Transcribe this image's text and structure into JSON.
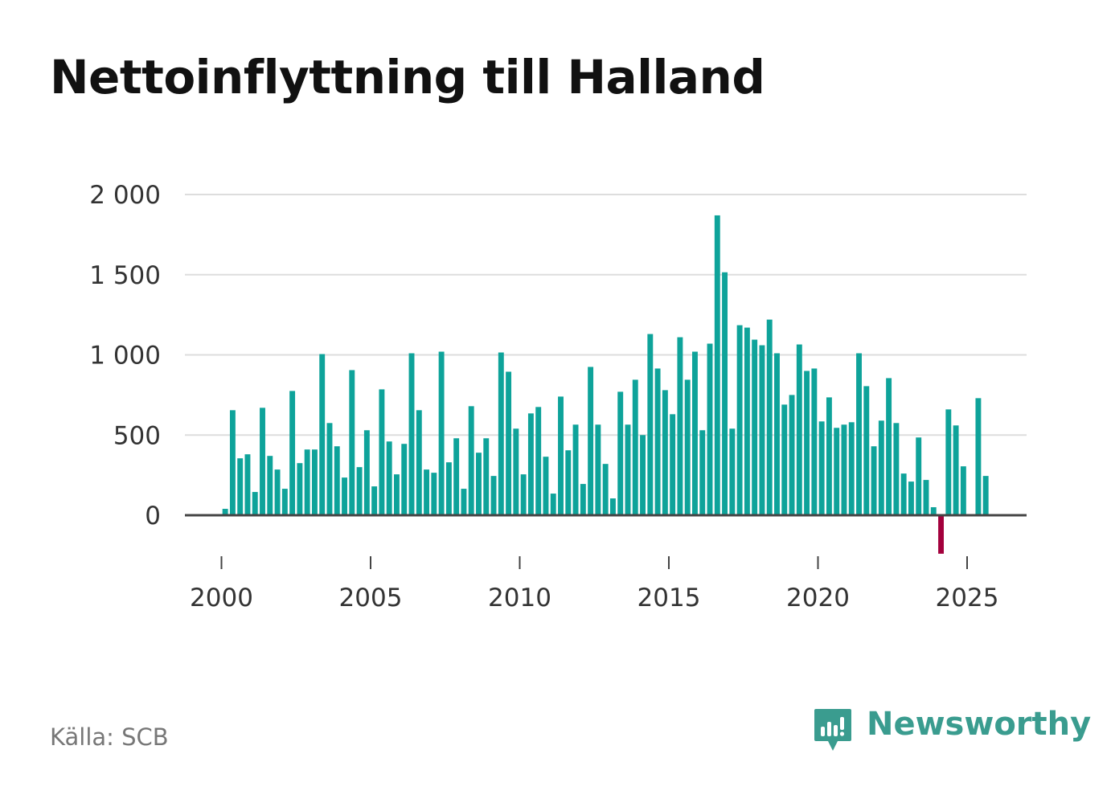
{
  "title": "Nettoinflyttning till Halland",
  "source": "Källa: SCB",
  "brand": {
    "name": "Newsworthy",
    "icon": "newsworthy-logo-icon"
  },
  "colors": {
    "positive": "#0ea39a",
    "negative": "#a3003c",
    "brand": "#3a9c8f",
    "grid": "#dddddd",
    "axis": "#444444"
  },
  "chart_data": {
    "type": "bar",
    "title": "Nettoinflyttning till Halland",
    "xlabel": "",
    "ylabel": "",
    "ylim": [
      -250,
      2000
    ],
    "xlim": [
      2000,
      2027
    ],
    "yticks": [
      0,
      500,
      1000,
      1500,
      2000
    ],
    "ytick_labels": [
      "0",
      "500",
      "1 000",
      "1 500",
      "2 000"
    ],
    "xticks": [
      2000,
      2005,
      2010,
      2015,
      2020,
      2025
    ],
    "xtick_labels": [
      "2000",
      "2005",
      "2010",
      "2015",
      "2020",
      "2025"
    ],
    "grid": true,
    "legend": "none",
    "periodicity": "quarterly, first bar at 2000 Q1",
    "values": [
      40,
      655,
      355,
      380,
      145,
      670,
      370,
      285,
      165,
      775,
      325,
      410,
      410,
      1005,
      575,
      430,
      235,
      905,
      300,
      530,
      180,
      785,
      460,
      255,
      445,
      1010,
      655,
      285,
      265,
      1020,
      330,
      480,
      165,
      680,
      390,
      480,
      245,
      1015,
      895,
      540,
      255,
      635,
      675,
      365,
      135,
      740,
      405,
      565,
      195,
      925,
      565,
      320,
      105,
      770,
      565,
      845,
      500,
      1130,
      915,
      780,
      630,
      1110,
      845,
      1020,
      530,
      1070,
      1870,
      1515,
      540,
      1185,
      1170,
      1095,
      1060,
      1220,
      1010,
      690,
      750,
      1065,
      900,
      915,
      585,
      735,
      545,
      565,
      580,
      1010,
      805,
      430,
      590,
      855,
      575,
      260,
      210,
      485,
      220,
      50,
      -240,
      660,
      560,
      305,
      null,
      730,
      245
    ]
  }
}
